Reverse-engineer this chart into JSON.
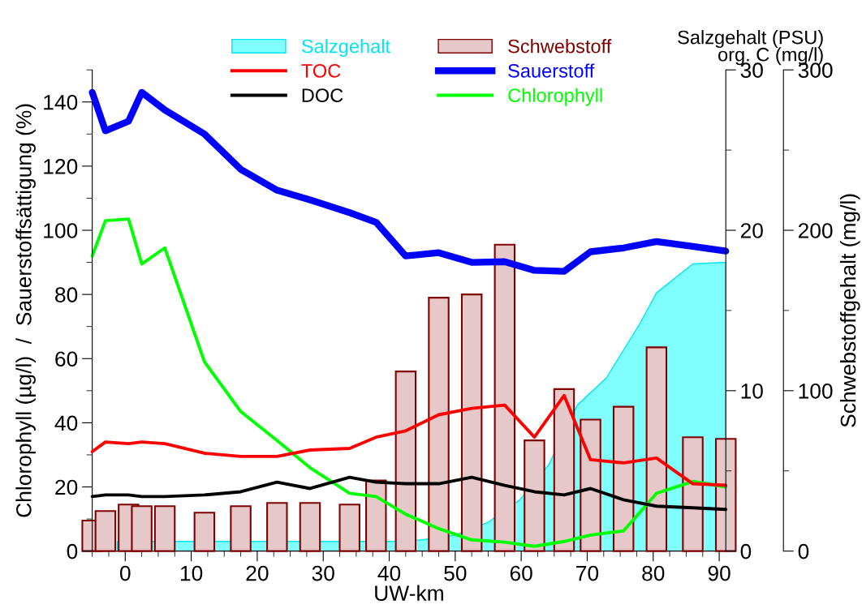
{
  "chart_data": {
    "type": "line",
    "xlabel": "UW-km",
    "ylabel": "Chlorophyll (µg/l)  /  Sauerstoffsättigung (%)",
    "y2label": "Salzgehalt (PSU)\norg. C (mg/l)",
    "y3label": "Schwebstoffgehalt (mg/l)",
    "x": [
      -5,
      -3,
      0.5,
      2.5,
      6,
      12,
      17.5,
      23,
      28,
      34,
      38,
      42.5,
      47.5,
      52.5,
      57.5,
      62,
      66.5,
      70.5,
      75.5,
      80.5,
      86,
      91
    ],
    "xlim": [
      -5,
      91
    ],
    "xticks": [
      0,
      10,
      20,
      30,
      40,
      50,
      60,
      70,
      80,
      90
    ],
    "ylim": [
      0,
      150
    ],
    "yticks": [
      0,
      20,
      40,
      60,
      80,
      100,
      120,
      140
    ],
    "y2lim": [
      0,
      30
    ],
    "y2ticks": [
      0,
      10,
      20,
      30
    ],
    "y3lim": [
      0,
      300
    ],
    "y3ticks": [
      0,
      100,
      200,
      300
    ],
    "grid": false,
    "legend": "top",
    "series": [
      {
        "name": "Salzgehalt",
        "type": "area",
        "axis": "y2",
        "color": "#80ffff",
        "x": [
          -1.2,
          9,
          14.7,
          20.2,
          25.5,
          31,
          36,
          40.2,
          45,
          50,
          55,
          59.8,
          64.2,
          68.5,
          72.9,
          78,
          80.5,
          86,
          91
        ],
        "values": [
          0.6,
          0.6,
          0.6,
          0.6,
          0.6,
          0.6,
          0.6,
          0.6,
          0.7,
          1.0,
          1.8,
          3.2,
          5.4,
          9.1,
          10.8,
          14.2,
          16.1,
          17.9,
          18
        ]
      },
      {
        "name": "TOC",
        "axis": "y2",
        "color": "#ff0000",
        "values": [
          6.2,
          6.8,
          6.7,
          6.8,
          6.7,
          6.1,
          5.9,
          5.9,
          6.3,
          6.4,
          7.1,
          7.5,
          8.5,
          8.9,
          9.1,
          7.1,
          9.7,
          5.7,
          5.5,
          5.8,
          4.2,
          4.1
        ]
      },
      {
        "name": "DOC",
        "axis": "y2",
        "color": "#000000",
        "values": [
          3.4,
          3.5,
          3.5,
          3.4,
          3.4,
          3.5,
          3.7,
          4.3,
          3.9,
          4.6,
          4.3,
          4.2,
          4.2,
          4.6,
          4.1,
          3.7,
          3.5,
          3.9,
          3.2,
          2.8,
          2.7,
          2.6
        ]
      },
      {
        "name": "Schwebstoff",
        "type": "bar",
        "axis": "y3",
        "color": "#e6c8c8",
        "values": [
          19,
          25,
          29,
          28,
          28,
          24,
          28,
          30,
          30,
          29,
          44,
          112,
          158,
          160,
          191,
          69,
          101,
          82,
          90,
          127,
          71,
          70
        ]
      },
      {
        "name": "Sauerstoff",
        "color": "#0000ff",
        "values": [
          143,
          131,
          134,
          143,
          137.5,
          130,
          119,
          112.5,
          109.5,
          105.5,
          102.5,
          92,
          93,
          90,
          90.2,
          87.5,
          87.2,
          93.3,
          94.5,
          96.5,
          95,
          93.5
        ]
      },
      {
        "name": "Chlorophyll",
        "color": "#00ff00",
        "values": [
          92,
          103,
          103.5,
          89.5,
          94.5,
          59,
          43.5,
          34.5,
          26,
          18,
          17,
          11.5,
          7,
          3.5,
          2.8,
          1.5,
          3,
          5,
          6.3,
          18,
          21.7,
          20
        ]
      }
    ]
  }
}
